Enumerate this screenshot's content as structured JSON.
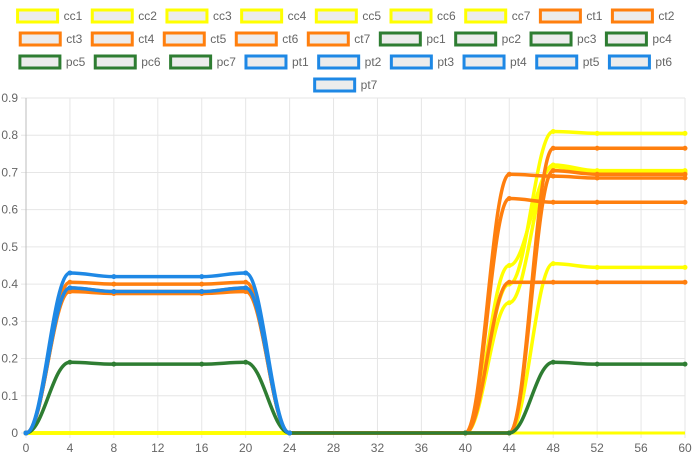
{
  "chart_data": {
    "type": "line",
    "xlim": [
      0,
      60
    ],
    "ylim": [
      0,
      0.9
    ],
    "x_ticks": [
      "0",
      "4",
      "8",
      "12",
      "16",
      "20",
      "24",
      "28",
      "32",
      "36",
      "40",
      "44",
      "48",
      "52",
      "56",
      "60"
    ],
    "y_ticks": [
      "0",
      "0.1",
      "0.2",
      "0.3",
      "0.4",
      "0.5",
      "0.6",
      "0.7",
      "0.8",
      "0.9"
    ],
    "grid": true,
    "legend_position": "top",
    "curve": "smooth",
    "series": [
      {
        "name": "cc1",
        "color": "#ffff00",
        "points": []
      },
      {
        "name": "cc2",
        "color": "#ffff00",
        "points": []
      },
      {
        "name": "cc3",
        "color": "#ffff00",
        "points": []
      },
      {
        "name": "cc4",
        "color": "#ffff00",
        "points": [
          [
            0,
            0
          ],
          [
            40,
            0
          ],
          [
            44,
            0
          ],
          [
            48,
            0.455
          ],
          [
            52,
            0.445
          ],
          [
            60,
            0.445
          ]
        ]
      },
      {
        "name": "cc5",
        "color": "#ffff00",
        "points": [
          [
            0,
            0
          ],
          [
            40,
            0
          ],
          [
            44,
            0.45
          ],
          [
            48,
            0.715
          ],
          [
            52,
            0.7
          ],
          [
            60,
            0.7
          ]
        ]
      },
      {
        "name": "cc6",
        "color": "#ffff00",
        "points": [
          [
            0,
            0
          ],
          [
            40,
            0
          ],
          [
            44,
            0.4
          ],
          [
            48,
            0.81
          ],
          [
            52,
            0.805
          ],
          [
            60,
            0.805
          ]
        ]
      },
      {
        "name": "cc7",
        "color": "#ffff00",
        "points": [
          [
            0,
            0
          ],
          [
            40,
            0
          ],
          [
            44,
            0.35
          ],
          [
            48,
            0.72
          ],
          [
            52,
            0.705
          ],
          [
            60,
            0.705
          ]
        ]
      },
      {
        "name": "ct1",
        "color": "#ff7f0e",
        "points": [
          [
            0,
            0
          ],
          [
            4,
            0.385
          ],
          [
            8,
            0.375
          ],
          [
            16,
            0.375
          ],
          [
            20,
            0.385
          ],
          [
            24,
            0
          ],
          [
            40,
            0
          ],
          [
            44,
            0.405
          ],
          [
            48,
            0.405
          ],
          [
            52,
            0.405
          ],
          [
            60,
            0.405
          ]
        ]
      },
      {
        "name": "ct2",
        "color": "#ff7f0e",
        "points": [
          [
            0,
            0
          ],
          [
            4,
            0.39
          ],
          [
            8,
            0.38
          ],
          [
            16,
            0.38
          ],
          [
            20,
            0.39
          ],
          [
            24,
            0
          ],
          [
            40,
            0
          ],
          [
            44,
            0.63
          ],
          [
            48,
            0.62
          ],
          [
            52,
            0.62
          ],
          [
            60,
            0.62
          ]
        ]
      },
      {
        "name": "ct3",
        "color": "#ff7f0e",
        "points": [
          [
            0,
            0
          ],
          [
            4,
            0.405
          ],
          [
            8,
            0.4
          ],
          [
            16,
            0.4
          ],
          [
            20,
            0.405
          ],
          [
            24,
            0
          ],
          [
            40,
            0
          ],
          [
            44,
            0.695
          ],
          [
            48,
            0.69
          ],
          [
            52,
            0.685
          ],
          [
            60,
            0.685
          ]
        ]
      },
      {
        "name": "ct4",
        "color": "#ff7f0e",
        "points": [
          [
            0,
            0
          ],
          [
            4,
            0.385
          ],
          [
            8,
            0.375
          ],
          [
            16,
            0.375
          ],
          [
            20,
            0.385
          ],
          [
            24,
            0
          ],
          [
            40,
            0
          ],
          [
            44,
            0
          ],
          [
            48,
            0.765
          ],
          [
            52,
            0.765
          ],
          [
            60,
            0.765
          ]
        ]
      },
      {
        "name": "ct5",
        "color": "#ff7f0e",
        "points": [
          [
            0,
            0
          ],
          [
            4,
            0.38
          ],
          [
            8,
            0.375
          ],
          [
            16,
            0.375
          ],
          [
            20,
            0.38
          ],
          [
            24,
            0
          ],
          [
            40,
            0
          ],
          [
            44,
            0
          ],
          [
            48,
            0.705
          ],
          [
            52,
            0.695
          ],
          [
            60,
            0.695
          ]
        ]
      },
      {
        "name": "ct6",
        "color": "#ff7f0e",
        "points": []
      },
      {
        "name": "ct7",
        "color": "#ff7f0e",
        "points": []
      },
      {
        "name": "pc1",
        "color": "#2e7d32",
        "points": [
          [
            0,
            0
          ],
          [
            4,
            0.19
          ],
          [
            8,
            0.185
          ],
          [
            16,
            0.185
          ],
          [
            20,
            0.19
          ],
          [
            24,
            0
          ],
          [
            40,
            0
          ],
          [
            44,
            0
          ],
          [
            48,
            0.19
          ],
          [
            52,
            0.185
          ],
          [
            60,
            0.185
          ]
        ]
      },
      {
        "name": "pc2",
        "color": "#2e7d32",
        "points": []
      },
      {
        "name": "pc3",
        "color": "#2e7d32",
        "points": []
      },
      {
        "name": "pc4",
        "color": "#2e7d32",
        "points": []
      },
      {
        "name": "pc5",
        "color": "#2e7d32",
        "points": []
      },
      {
        "name": "pc6",
        "color": "#2e7d32",
        "points": []
      },
      {
        "name": "pc7",
        "color": "#2e7d32",
        "points": []
      },
      {
        "name": "pt1",
        "color": "#1e88e5",
        "points": [
          [
            0,
            0
          ],
          [
            4,
            0.43
          ],
          [
            8,
            0.42
          ],
          [
            16,
            0.42
          ],
          [
            20,
            0.43
          ],
          [
            24,
            0
          ]
        ]
      },
      {
        "name": "pt2",
        "color": "#1e88e5",
        "points": [
          [
            0,
            0
          ],
          [
            4,
            0.39
          ],
          [
            8,
            0.38
          ],
          [
            16,
            0.38
          ],
          [
            20,
            0.39
          ],
          [
            24,
            0
          ]
        ]
      },
      {
        "name": "pt3",
        "color": "#1e88e5",
        "points": []
      },
      {
        "name": "pt4",
        "color": "#1e88e5",
        "points": []
      },
      {
        "name": "pt5",
        "color": "#1e88e5",
        "points": []
      },
      {
        "name": "pt6",
        "color": "#1e88e5",
        "points": []
      },
      {
        "name": "pt7",
        "color": "#1e88e5",
        "points": []
      }
    ]
  }
}
